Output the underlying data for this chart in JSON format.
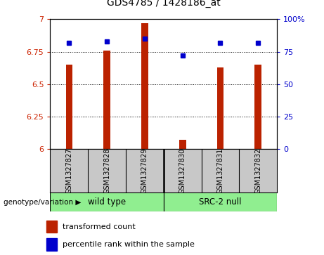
{
  "title": "GDS4785 / 1428186_at",
  "samples": [
    "GSM1327827",
    "GSM1327828",
    "GSM1327829",
    "GSM1327830",
    "GSM1327831",
    "GSM1327832"
  ],
  "transformed_counts": [
    6.65,
    6.76,
    6.97,
    6.07,
    6.63,
    6.65
  ],
  "percentile_ranks": [
    82,
    83,
    85,
    72,
    82,
    82
  ],
  "groups": [
    "wild type",
    "wild type",
    "wild type",
    "SRC-2 null",
    "SRC-2 null",
    "SRC-2 null"
  ],
  "bar_color": "#BB2200",
  "dot_color": "#0000CC",
  "ylim_left": [
    6.0,
    7.0
  ],
  "ylim_right": [
    0,
    100
  ],
  "yticks_left": [
    6.0,
    6.25,
    6.5,
    6.75,
    7.0
  ],
  "ytick_labels_left": [
    "6",
    "6.25",
    "6.5",
    "6.75",
    "7"
  ],
  "yticks_right": [
    0,
    25,
    50,
    75,
    100
  ],
  "ytick_labels_right": [
    "0",
    "25",
    "50",
    "75",
    "100%"
  ],
  "grid_values": [
    6.25,
    6.5,
    6.75
  ],
  "bg_color": "#ffffff",
  "axis_color_left": "#CC2200",
  "axis_color_right": "#0000CC",
  "legend_red_label": "transformed count",
  "legend_blue_label": "percentile rank within the sample",
  "genotype_label": "genotype/variation",
  "bar_width": 0.18,
  "cell_bg": "#C8C8C8",
  "group_green": "#90EE90"
}
